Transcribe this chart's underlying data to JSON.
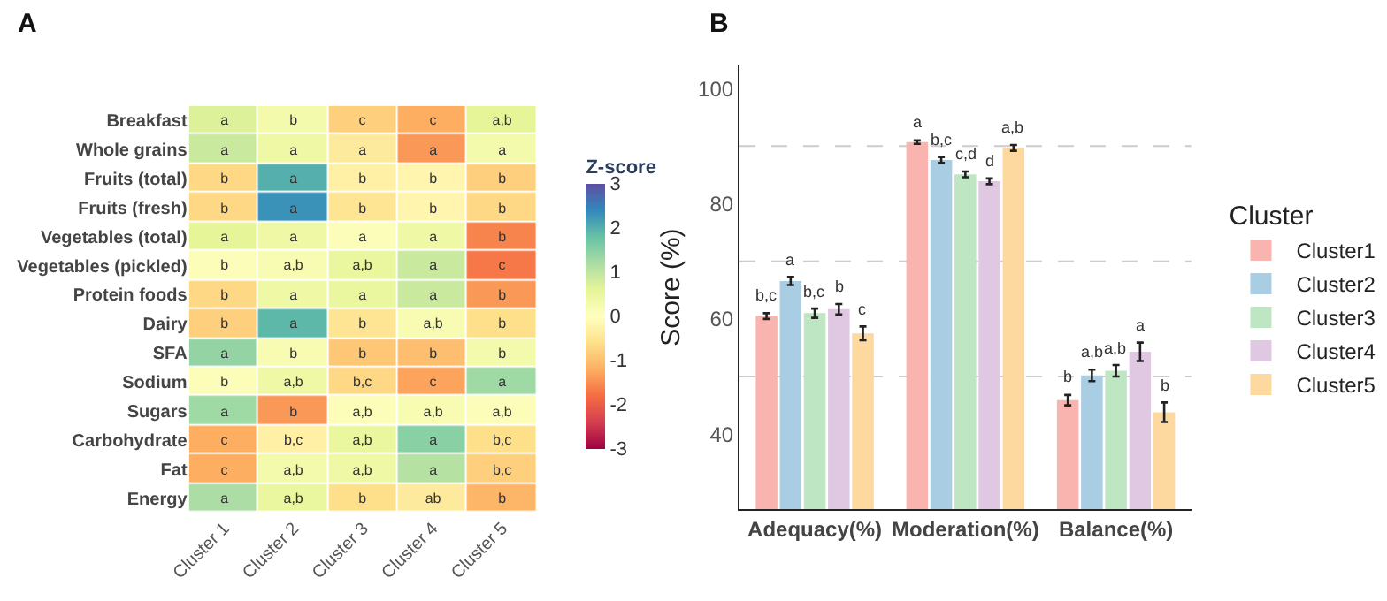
{
  "chart_data": [
    {
      "type": "heatmap",
      "title": "A",
      "clabel": "Z-score",
      "categories": [
        "Cluster 1",
        "Cluster 2",
        "Cluster 3",
        "Cluster 4",
        "Cluster 5"
      ],
      "y_categories": [
        "Breakfast",
        "Whole grains",
        "Fruits (total)",
        "Fruits (fresh)",
        "Vegetables (total)",
        "Vegetables (pickled)",
        "Protein foods",
        "Dairy",
        "SFA",
        "Sodium",
        "Sugars",
        "Carbohydrate",
        "Fat",
        "Energy"
      ],
      "cells": [
        [
          0.7,
          0.3,
          -0.8,
          -1.2,
          0.6
        ],
        [
          0.9,
          0.4,
          -0.4,
          -1.4,
          0.3
        ],
        [
          -0.7,
          2.0,
          -0.3,
          -0.2,
          -0.8
        ],
        [
          -0.7,
          2.3,
          -0.5,
          -0.2,
          -0.7
        ],
        [
          0.6,
          0.4,
          0.1,
          0.4,
          -1.6
        ],
        [
          0.1,
          0.2,
          0.5,
          0.9,
          -1.7
        ],
        [
          -0.7,
          0.4,
          0.5,
          0.9,
          -1.4
        ],
        [
          -0.8,
          1.9,
          -0.5,
          0.2,
          -0.6
        ],
        [
          1.4,
          0.2,
          -0.9,
          -1.0,
          0.3
        ],
        [
          0.1,
          0.4,
          -0.7,
          -1.3,
          1.3
        ],
        [
          1.3,
          -1.4,
          0.1,
          0.2,
          0.1
        ],
        [
          -1.2,
          -0.3,
          0.5,
          1.5,
          -0.6
        ],
        [
          -1.2,
          0.3,
          0.4,
          1.1,
          -0.8
        ],
        [
          1.2,
          0.5,
          -0.6,
          -0.4,
          -1.1
        ]
      ],
      "cell_labels": [
        [
          "a",
          "b",
          "c",
          "c",
          "a,b"
        ],
        [
          "a",
          "a",
          "a",
          "a",
          "a"
        ],
        [
          "b",
          "a",
          "b",
          "b",
          "b"
        ],
        [
          "b",
          "a",
          "b",
          "b",
          "b"
        ],
        [
          "a",
          "a",
          "a",
          "a",
          "b"
        ],
        [
          "b",
          "a,b",
          "a,b",
          "a",
          "c"
        ],
        [
          "b",
          "a",
          "a",
          "a",
          "b"
        ],
        [
          "b",
          "a",
          "b",
          "a,b",
          "b"
        ],
        [
          "a",
          "b",
          "b",
          "b",
          "b"
        ],
        [
          "b",
          "a,b",
          "b,c",
          "c",
          "a"
        ],
        [
          "a",
          "b",
          "a,b",
          "a,b",
          "a,b"
        ],
        [
          "c",
          "b,c",
          "a,b",
          "a",
          "b,c"
        ],
        [
          "c",
          "a,b",
          "a,b",
          "a",
          "b,c"
        ],
        [
          "a",
          "a,b",
          "b",
          "ab",
          "b"
        ]
      ],
      "clim": [
        -3,
        3
      ],
      "cticks": [
        -3,
        -2,
        -1,
        0,
        1,
        2,
        3
      ]
    },
    {
      "type": "bar",
      "title": "B",
      "ylabel": "Score (%)",
      "legend_title": "Cluster",
      "legend": "right",
      "categories": [
        "Adequacy(%)",
        "Moderation(%)",
        "Balance(%)"
      ],
      "ylim": [
        27,
        104
      ],
      "yticks": [
        40,
        60,
        80,
        100
      ],
      "ref_lines": [
        {
          "axis": "y",
          "value": 50,
          "color": "#cccccc",
          "line_style": "dashed"
        },
        {
          "axis": "y",
          "value": 70,
          "color": "#cccccc",
          "line_style": "dashed"
        },
        {
          "axis": "y",
          "value": 90,
          "color": "#cccccc",
          "line_style": "dashed"
        }
      ],
      "series": [
        {
          "name": "Cluster1",
          "color": "#f9b4b0",
          "values": [
            60.5,
            90.7,
            45.9
          ],
          "errors": [
            0.5,
            0.3,
            0.9
          ],
          "value_labels": [
            "b,c",
            "a",
            "b"
          ]
        },
        {
          "name": "Cluster2",
          "color": "#a9cde3",
          "values": [
            66.6,
            87.6,
            50.2
          ],
          "errors": [
            0.7,
            0.5,
            1.0
          ],
          "value_labels": [
            "a",
            "b,c",
            "a,b"
          ]
        },
        {
          "name": "Cluster3",
          "color": "#bfe6c3",
          "values": [
            61.0,
            85.1,
            51.0
          ],
          "errors": [
            0.8,
            0.5,
            1.0
          ],
          "value_labels": [
            "b,c",
            "c,d",
            "a,b"
          ]
        },
        {
          "name": "Cluster4",
          "color": "#e0c8e3",
          "values": [
            61.7,
            83.9,
            54.3
          ],
          "errors": [
            0.9,
            0.5,
            1.6
          ],
          "value_labels": [
            "b",
            "d",
            "a"
          ]
        },
        {
          "name": "Cluster5",
          "color": "#fdd9a0",
          "values": [
            57.5,
            89.7,
            43.8
          ],
          "errors": [
            1.2,
            0.5,
            1.7
          ],
          "value_labels": [
            "c",
            "a,b",
            "b"
          ]
        }
      ]
    }
  ]
}
